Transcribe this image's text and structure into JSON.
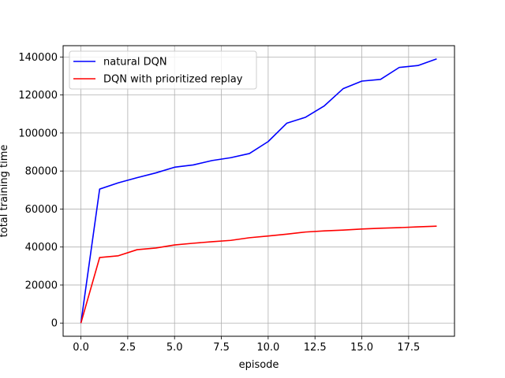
{
  "chart_data": {
    "type": "line",
    "title": "",
    "xlabel": "episode",
    "ylabel": "total training time",
    "xlim": [
      -0.95,
      19.95
    ],
    "ylim": [
      -6950,
      145950
    ],
    "x_ticks": [
      0,
      2.5,
      5,
      7.5,
      10,
      12.5,
      15,
      17.5
    ],
    "x_tick_labels": [
      "0.0",
      "2.5",
      "5.0",
      "7.5",
      "10.0",
      "12.5",
      "15.0",
      "17.5"
    ],
    "y_ticks": [
      0,
      20000,
      40000,
      60000,
      80000,
      100000,
      120000,
      140000
    ],
    "y_tick_labels": [
      "0",
      "20000",
      "40000",
      "60000",
      "80000",
      "100000",
      "120000",
      "140000"
    ],
    "grid": true,
    "legend_position": "top-left",
    "x": [
      0,
      1,
      2,
      3,
      4,
      5,
      6,
      7,
      8,
      9,
      10,
      11,
      12,
      13,
      14,
      15,
      16,
      17,
      18,
      19
    ],
    "series": [
      {
        "name": "natural DQN",
        "color": "#0000ff",
        "values": [
          0,
          70500,
          73800,
          76500,
          79000,
          82000,
          83200,
          85500,
          87000,
          89200,
          95500,
          105200,
          108300,
          114300,
          123300,
          127300,
          128200,
          134500,
          135500,
          139000
        ]
      },
      {
        "name": "DQN with prioritized replay",
        "color": "#ff0000",
        "values": [
          0,
          34500,
          35400,
          38600,
          39500,
          41100,
          42000,
          42800,
          43500,
          44900,
          45800,
          46800,
          47900,
          48500,
          48900,
          49500,
          49900,
          50200,
          50600,
          51000
        ]
      }
    ]
  }
}
